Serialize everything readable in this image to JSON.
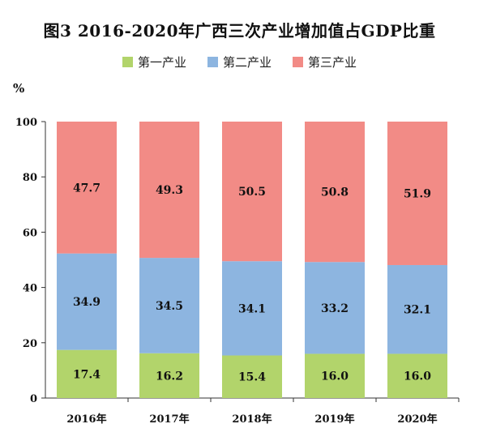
{
  "chart_data": {
    "type": "bar",
    "stacked": true,
    "title": "图3 2016-2020年广西三次产业增加值占GDP比重",
    "ylabel": "%",
    "ylim": [
      0,
      100
    ],
    "yticks": [
      0,
      20,
      40,
      60,
      80,
      100
    ],
    "categories": [
      "2016年",
      "2017年",
      "2018年",
      "2019年",
      "2020年"
    ],
    "series": [
      {
        "name": "第一产业",
        "color": "#b2d46b",
        "values": [
          17.4,
          16.2,
          15.4,
          16.0,
          16.0
        ],
        "labels": [
          "17.4",
          "16.2",
          "15.4",
          "16.0",
          "16.0"
        ]
      },
      {
        "name": "第二产业",
        "color": "#8db5e0",
        "values": [
          34.9,
          34.5,
          34.1,
          33.2,
          32.1
        ],
        "labels": [
          "34.9",
          "34.5",
          "34.1",
          "33.2",
          "32.1"
        ]
      },
      {
        "name": "第三产业",
        "color": "#f28b86",
        "values": [
          47.7,
          49.3,
          50.5,
          50.8,
          51.9
        ],
        "labels": [
          "47.7",
          "49.3",
          "50.5",
          "50.8",
          "51.9"
        ]
      }
    ],
    "legend_position": "top-center",
    "grid": false
  }
}
